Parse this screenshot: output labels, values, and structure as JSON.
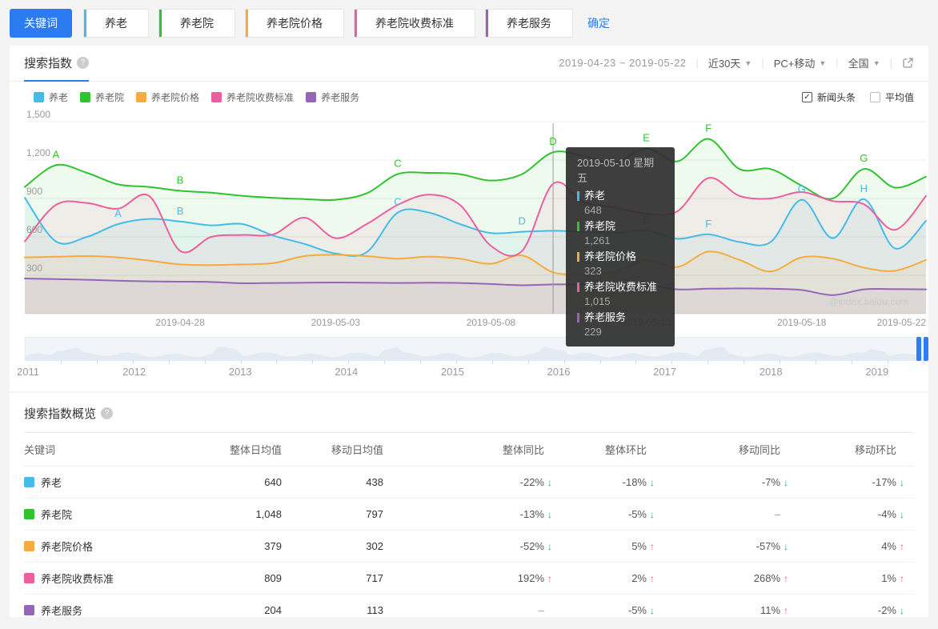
{
  "toolbar": {
    "keyword_label": "关键词",
    "confirm_label": "确定",
    "keywords": [
      {
        "text": "养老",
        "color": "#45bce8"
      },
      {
        "text": "养老院",
        "color": "#30c330"
      },
      {
        "text": "养老院价格",
        "color": "#f6ab3e"
      },
      {
        "text": "养老院收费标准",
        "color": "#ee5e9f"
      },
      {
        "text": "养老服务",
        "color": "#9465b8"
      }
    ]
  },
  "panel": {
    "tab_label": "搜索指数",
    "date_range": "2019-04-23 ~ 2019-05-22",
    "time_range": "近30天",
    "platform": "PC+移动",
    "region": "全国",
    "news_label": "新闻头条",
    "avg_label": "平均值",
    "news_checked": true,
    "avg_checked": false
  },
  "chart": {
    "watermark": "@index.baidu.com",
    "accent_color": "#2b7cf0"
  },
  "chart_data": {
    "type": "line",
    "title": "搜索指数",
    "ylim": [
      0,
      1500
    ],
    "grid": true,
    "legend_position": "top-left",
    "yticks": [
      {
        "value": 300,
        "label": "300"
      },
      {
        "value": 600,
        "label": "600"
      },
      {
        "value": 900,
        "label": "900"
      },
      {
        "value": 1200,
        "label": "1,200"
      },
      {
        "value": 1500,
        "label": "1,500"
      }
    ],
    "x_dates": [
      "2019-04-23",
      "2019-04-24",
      "2019-04-25",
      "2019-04-26",
      "2019-04-27",
      "2019-04-28",
      "2019-04-29",
      "2019-04-30",
      "2019-05-01",
      "2019-05-02",
      "2019-05-03",
      "2019-05-04",
      "2019-05-05",
      "2019-05-06",
      "2019-05-07",
      "2019-05-08",
      "2019-05-09",
      "2019-05-10",
      "2019-05-11",
      "2019-05-12",
      "2019-05-13",
      "2019-05-14",
      "2019-05-15",
      "2019-05-16",
      "2019-05-17",
      "2019-05-18",
      "2019-05-19",
      "2019-05-20",
      "2019-05-21",
      "2019-05-22"
    ],
    "xticks": [
      {
        "day": 5,
        "label": "2019-04-28"
      },
      {
        "day": 10,
        "label": "2019-05-03"
      },
      {
        "day": 15,
        "label": "2019-05-08"
      },
      {
        "day": 20,
        "label": "2019-05-13"
      },
      {
        "day": 25,
        "label": "2019-05-18"
      },
      {
        "day": 29,
        "label": "2019-05-22"
      }
    ],
    "series": [
      {
        "name": "养老",
        "color": "#45bce8",
        "values": [
          905,
          565,
          600,
          700,
          740,
          720,
          690,
          700,
          610,
          545,
          470,
          480,
          790,
          790,
          700,
          630,
          640,
          648,
          640,
          630,
          650,
          585,
          620,
          560,
          560,
          890,
          590,
          895,
          510,
          725
        ]
      },
      {
        "name": "养老院",
        "color": "#30c330",
        "values": [
          990,
          1160,
          1100,
          1010,
          990,
          960,
          945,
          920,
          905,
          895,
          890,
          940,
          1090,
          1100,
          1090,
          1040,
          1090,
          1261,
          1230,
          1180,
          1290,
          1190,
          1365,
          1130,
          1130,
          1000,
          900,
          1130,
          985,
          1070
        ]
      },
      {
        "name": "养老院价格",
        "color": "#f6ab3e",
        "values": [
          440,
          445,
          450,
          440,
          415,
          385,
          380,
          385,
          395,
          450,
          460,
          450,
          430,
          445,
          430,
          390,
          455,
          323,
          310,
          330,
          420,
          365,
          485,
          420,
          330,
          440,
          430,
          360,
          335,
          420
        ]
      },
      {
        "name": "养老院收费标准",
        "color": "#ee5e9f",
        "values": [
          565,
          850,
          865,
          820,
          920,
          490,
          600,
          615,
          620,
          750,
          590,
          700,
          850,
          930,
          850,
          530,
          490,
          1015,
          870,
          830,
          780,
          800,
          1060,
          920,
          900,
          950,
          880,
          855,
          655,
          920
        ]
      },
      {
        "name": "养老服务",
        "color": "#9465b8",
        "values": [
          275,
          270,
          265,
          258,
          252,
          250,
          248,
          238,
          240,
          242,
          244,
          242,
          240,
          242,
          240,
          232,
          222,
          229,
          230,
          228,
          225,
          190,
          195,
          198,
          195,
          185,
          145,
          190,
          192,
          190
        ]
      }
    ],
    "markers": [
      {
        "series": 1,
        "letter": "A",
        "day": 1
      },
      {
        "series": 1,
        "letter": "B",
        "day": 5
      },
      {
        "series": 1,
        "letter": "C",
        "day": 12
      },
      {
        "series": 1,
        "letter": "D",
        "day": 17
      },
      {
        "series": 1,
        "letter": "E",
        "day": 20
      },
      {
        "series": 1,
        "letter": "F",
        "day": 22
      },
      {
        "series": 1,
        "letter": "G",
        "day": 27
      },
      {
        "series": 0,
        "letter": "A",
        "day": 3
      },
      {
        "series": 0,
        "letter": "B",
        "day": 5
      },
      {
        "series": 0,
        "letter": "C",
        "day": 12
      },
      {
        "series": 0,
        "letter": "D",
        "day": 16
      },
      {
        "series": 0,
        "letter": "E",
        "day": 20
      },
      {
        "series": 0,
        "letter": "F",
        "day": 22
      },
      {
        "series": 0,
        "letter": "G",
        "day": 25
      },
      {
        "series": 0,
        "letter": "H",
        "day": 27
      }
    ],
    "crosshair_day": 17
  },
  "tooltip": {
    "date": "2019-05-10 星期五",
    "items": [
      {
        "name": "养老",
        "value": "648",
        "color": "#45bce8"
      },
      {
        "name": "养老院",
        "value": "1,261",
        "color": "#30c330"
      },
      {
        "name": "养老院价格",
        "value": "323",
        "color": "#f6ab3e"
      },
      {
        "name": "养老院收费标准",
        "value": "1,015",
        "color": "#ee5e9f"
      },
      {
        "name": "养老服务",
        "value": "229",
        "color": "#9465b8"
      }
    ]
  },
  "slider": {
    "years": [
      "2011",
      "2012",
      "2013",
      "2014",
      "2015",
      "2016",
      "2017",
      "2018",
      "2019"
    ]
  },
  "overview": {
    "title": "搜索指数概览",
    "columns": [
      "关键词",
      "整体日均值",
      "移动日均值",
      "整体同比",
      "整体环比",
      "移动同比",
      "移动环比"
    ],
    "rows": [
      {
        "keyword": "养老",
        "color": "#45bce8",
        "overall": "640",
        "mobile": "438",
        "metrics": [
          {
            "text": "-22%",
            "dir": "down"
          },
          {
            "text": "-18%",
            "dir": "down"
          },
          {
            "text": "-7%",
            "dir": "down"
          },
          {
            "text": "-17%",
            "dir": "down"
          }
        ]
      },
      {
        "keyword": "养老院",
        "color": "#30c330",
        "overall": "1,048",
        "mobile": "797",
        "metrics": [
          {
            "text": "-13%",
            "dir": "down"
          },
          {
            "text": "-5%",
            "dir": "down"
          },
          {
            "text": "–",
            "dir": "none"
          },
          {
            "text": "-4%",
            "dir": "down"
          }
        ]
      },
      {
        "keyword": "养老院价格",
        "color": "#f6ab3e",
        "overall": "379",
        "mobile": "302",
        "metrics": [
          {
            "text": "-52%",
            "dir": "down"
          },
          {
            "text": "5%",
            "dir": "up"
          },
          {
            "text": "-57%",
            "dir": "down"
          },
          {
            "text": "4%",
            "dir": "up"
          }
        ]
      },
      {
        "keyword": "养老院收费标准",
        "color": "#ee5e9f",
        "overall": "809",
        "mobile": "717",
        "metrics": [
          {
            "text": "192%",
            "dir": "up"
          },
          {
            "text": "2%",
            "dir": "up"
          },
          {
            "text": "268%",
            "dir": "up"
          },
          {
            "text": "1%",
            "dir": "up"
          }
        ]
      },
      {
        "keyword": "养老服务",
        "color": "#9465b8",
        "overall": "204",
        "mobile": "113",
        "metrics": [
          {
            "text": "–",
            "dir": "none"
          },
          {
            "text": "-5%",
            "dir": "down"
          },
          {
            "text": "11%",
            "dir": "up"
          },
          {
            "text": "-2%",
            "dir": "down"
          }
        ]
      }
    ]
  }
}
